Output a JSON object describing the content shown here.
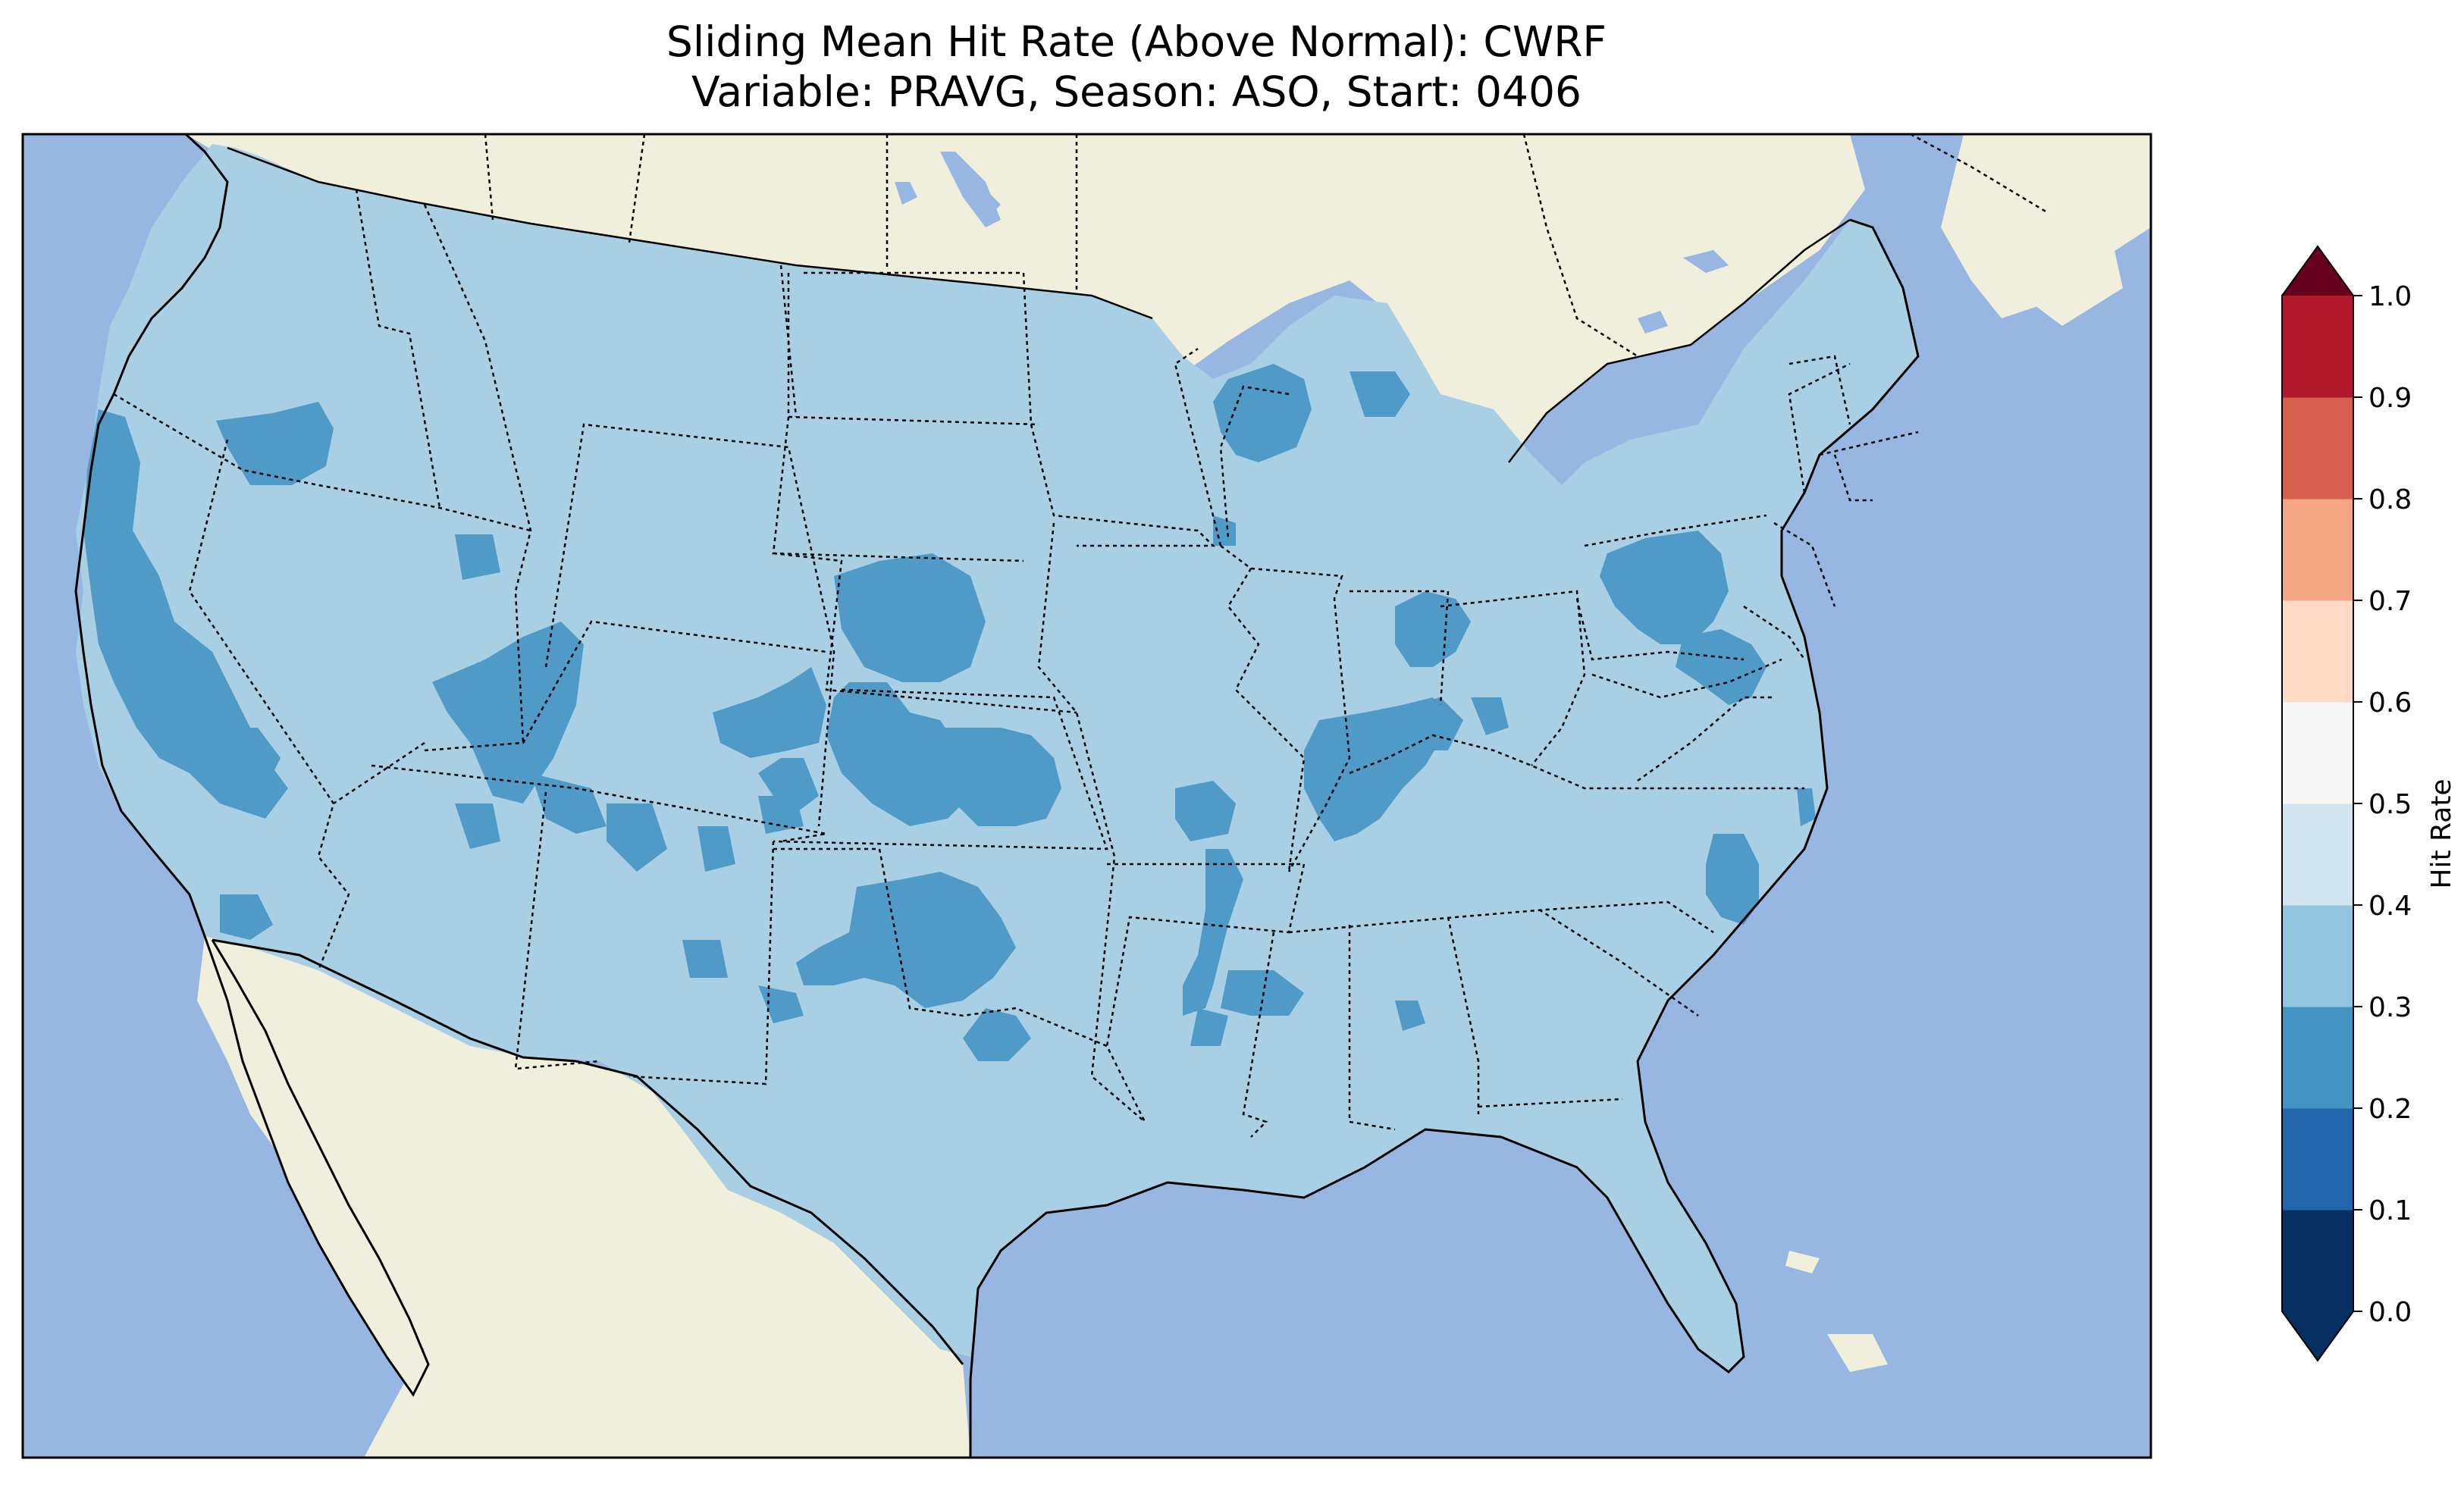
{
  "title": {
    "line1": "Sliding Mean Hit Rate (Above Normal): CWRF",
    "line2": "Variable: PRAVG, Season: ASO, Start: 0406"
  },
  "colorbar": {
    "label": "Hit Rate",
    "extend": "both",
    "ticks": [
      "0.0",
      "0.1",
      "0.2",
      "0.3",
      "0.4",
      "0.5",
      "0.6",
      "0.7",
      "0.8",
      "0.9",
      "1.0"
    ],
    "level_colors": [
      "#053061",
      "#2166ac",
      "#4393c3",
      "#92c5de",
      "#d1e5f0",
      "#f7f7f7",
      "#fddbc7",
      "#f4a582",
      "#d6604d",
      "#b2182b"
    ],
    "under_color": "#053061",
    "over_color": "#67001f"
  },
  "map": {
    "ocean_color": "#97b6e1",
    "land_color": "#efefdb",
    "lake_color": "#97b6e1",
    "field_base_class": "0.3-0.4",
    "field_base_color": "#a9cfe4",
    "field_low_class": "0.2-0.3",
    "field_low_color": "#509ac8"
  }
}
